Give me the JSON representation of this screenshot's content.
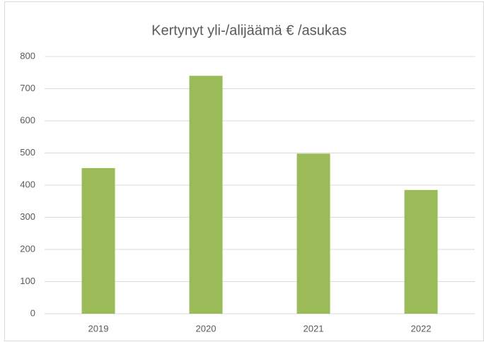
{
  "chart_data": {
    "type": "bar",
    "title": "Kertynyt yli-/alijäämä € /asukas",
    "categories": [
      "2019",
      "2020",
      "2021",
      "2022"
    ],
    "values": [
      453,
      740,
      498,
      385
    ],
    "color": "#9bbb59",
    "ylim": [
      0,
      800
    ],
    "yticks": [
      0,
      100,
      200,
      300,
      400,
      500,
      600,
      700,
      800
    ],
    "grid": true
  }
}
